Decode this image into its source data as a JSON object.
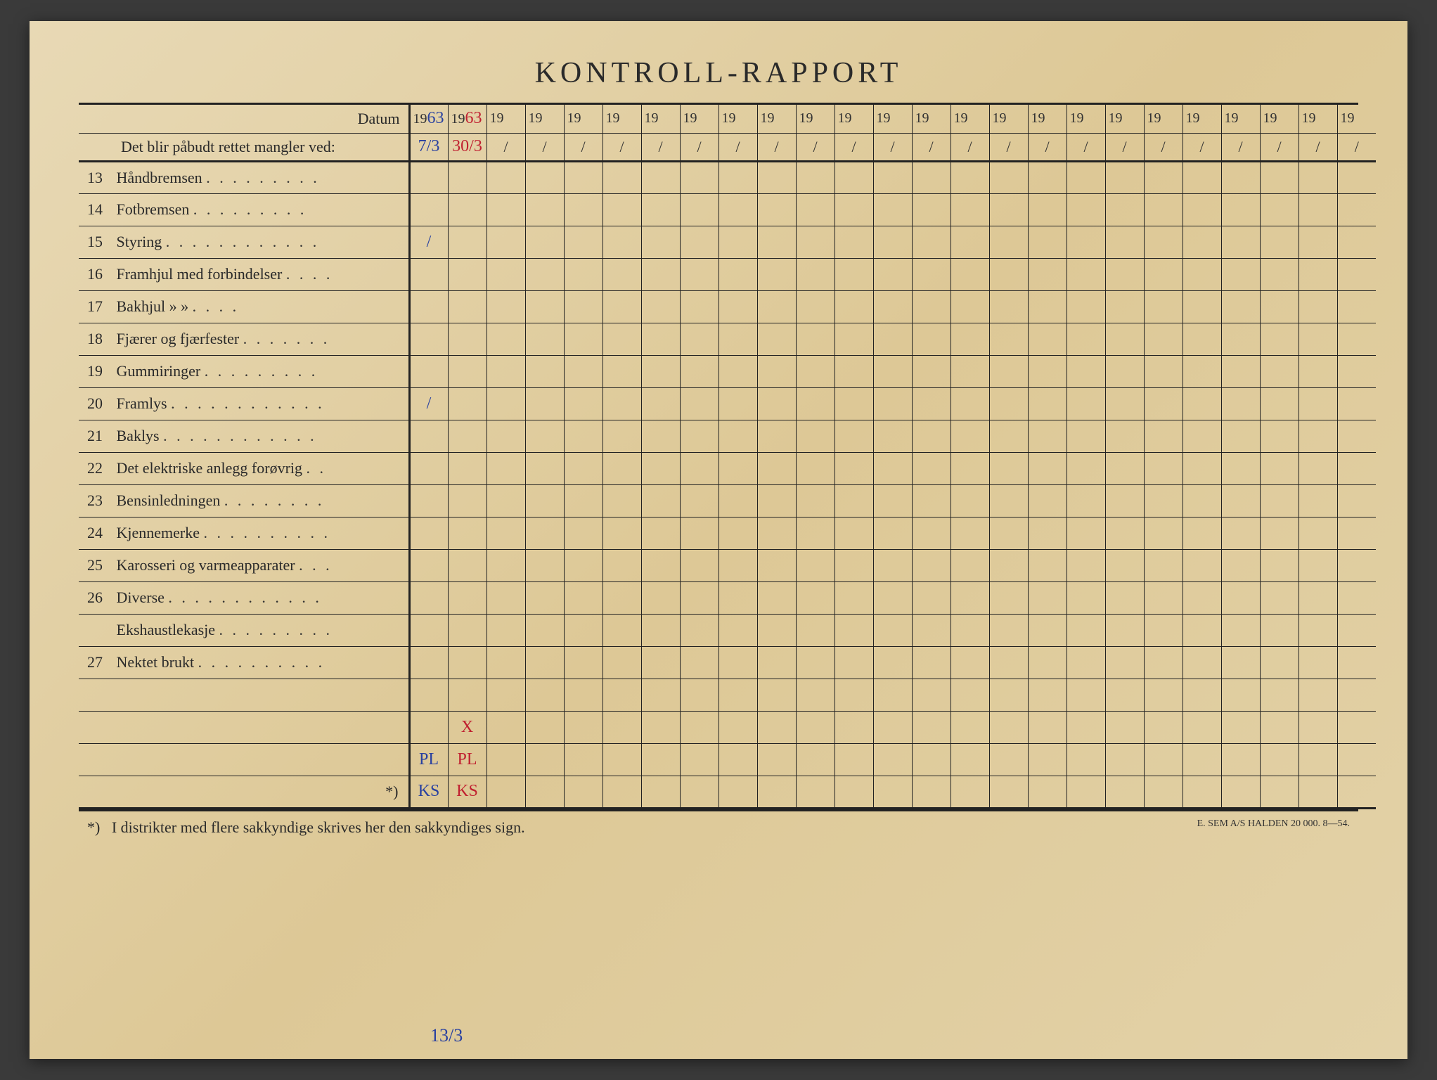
{
  "title": "KONTROLL-RAPPORT",
  "header": {
    "datum_label": "Datum",
    "sub_label": "Det blir påbudt rettet mangler ved:",
    "year_prefix": "19",
    "handwritten_years": [
      "63",
      "63"
    ],
    "handwritten_dates": [
      "7/3",
      "30/3"
    ],
    "slash": "/"
  },
  "num_data_cols": 25,
  "rows": [
    {
      "num": "13",
      "text": "Håndbremsen",
      "dots": ". . . . . . . . .",
      "marks": {}
    },
    {
      "num": "14",
      "text": "Fotbremsen",
      "dots": ". . . . . . . . .",
      "marks": {}
    },
    {
      "num": "15",
      "text": "Styring",
      "dots": ". . . . . . . . . . . .",
      "marks": {
        "0": {
          "text": "/",
          "color": "blue"
        }
      }
    },
    {
      "num": "16",
      "text": "Framhjul med forbindelser",
      "dots": ". . . .",
      "marks": {}
    },
    {
      "num": "17",
      "text": "Bakhjul       »          »",
      "dots": ". . . .",
      "marks": {}
    },
    {
      "num": "18",
      "text": "Fjærer og fjærfester",
      "dots": ". . . . . . .",
      "marks": {}
    },
    {
      "num": "19",
      "text": "Gummiringer",
      "dots": ". . . . . . . . .",
      "marks": {}
    },
    {
      "num": "20",
      "text": "Framlys",
      "dots": ". . . . . . . . . . . .",
      "marks": {
        "0": {
          "text": "/",
          "color": "blue"
        }
      }
    },
    {
      "num": "21",
      "text": "Baklys",
      "dots": ". . . . . . . . . . . .",
      "marks": {}
    },
    {
      "num": "22",
      "text": "Det elektriske anlegg forøvrig",
      "dots": ". .",
      "marks": {}
    },
    {
      "num": "23",
      "text": "Bensinledningen",
      "dots": ". . . . . . . .",
      "marks": {}
    },
    {
      "num": "24",
      "text": "Kjennemerke",
      "dots": ". . . . . . . . . .",
      "marks": {}
    },
    {
      "num": "25",
      "text": "Karosseri og varmeapparater",
      "dots": ". . .",
      "marks": {}
    },
    {
      "num": "26",
      "text": "Diverse",
      "dots": ". . . . . . . . . . . .",
      "marks": {}
    },
    {
      "num": "",
      "text": "Ekshaustlekasje",
      "dots": ". . . . . . . . .",
      "marks": {}
    },
    {
      "num": "27",
      "text": "Nektet brukt",
      "dots": ". . . . . . . . . .",
      "marks": {}
    },
    {
      "num": "",
      "text": "",
      "dots": "",
      "marks": {}
    },
    {
      "num": "",
      "text": "",
      "dots": "",
      "marks": {
        "1": {
          "text": "X",
          "color": "red"
        }
      }
    },
    {
      "num": "",
      "text": "",
      "dots": "",
      "marks": {
        "0": {
          "text": "PL",
          "color": "blue"
        },
        "1": {
          "text": "PL",
          "color": "red"
        }
      }
    },
    {
      "num": "",
      "text": "",
      "dots": "",
      "label_suffix": "*)",
      "marks": {
        "0": {
          "text": "KS",
          "color": "blue"
        },
        "1": {
          "text": "KS",
          "color": "red"
        }
      }
    }
  ],
  "footnote": {
    "marker": "*)",
    "text": "I distrikter med flere sakkyndige skrives her den sakkyndiges sign.",
    "below_mark": "13/3",
    "printer": "E. SEM A/S HALDEN  20 000.  8—54."
  },
  "colors": {
    "paper_bg": "#e3d2a8",
    "ink": "#2a2a2a",
    "line": "#222222",
    "hand_blue": "#2840a0",
    "hand_red": "#c02030"
  }
}
